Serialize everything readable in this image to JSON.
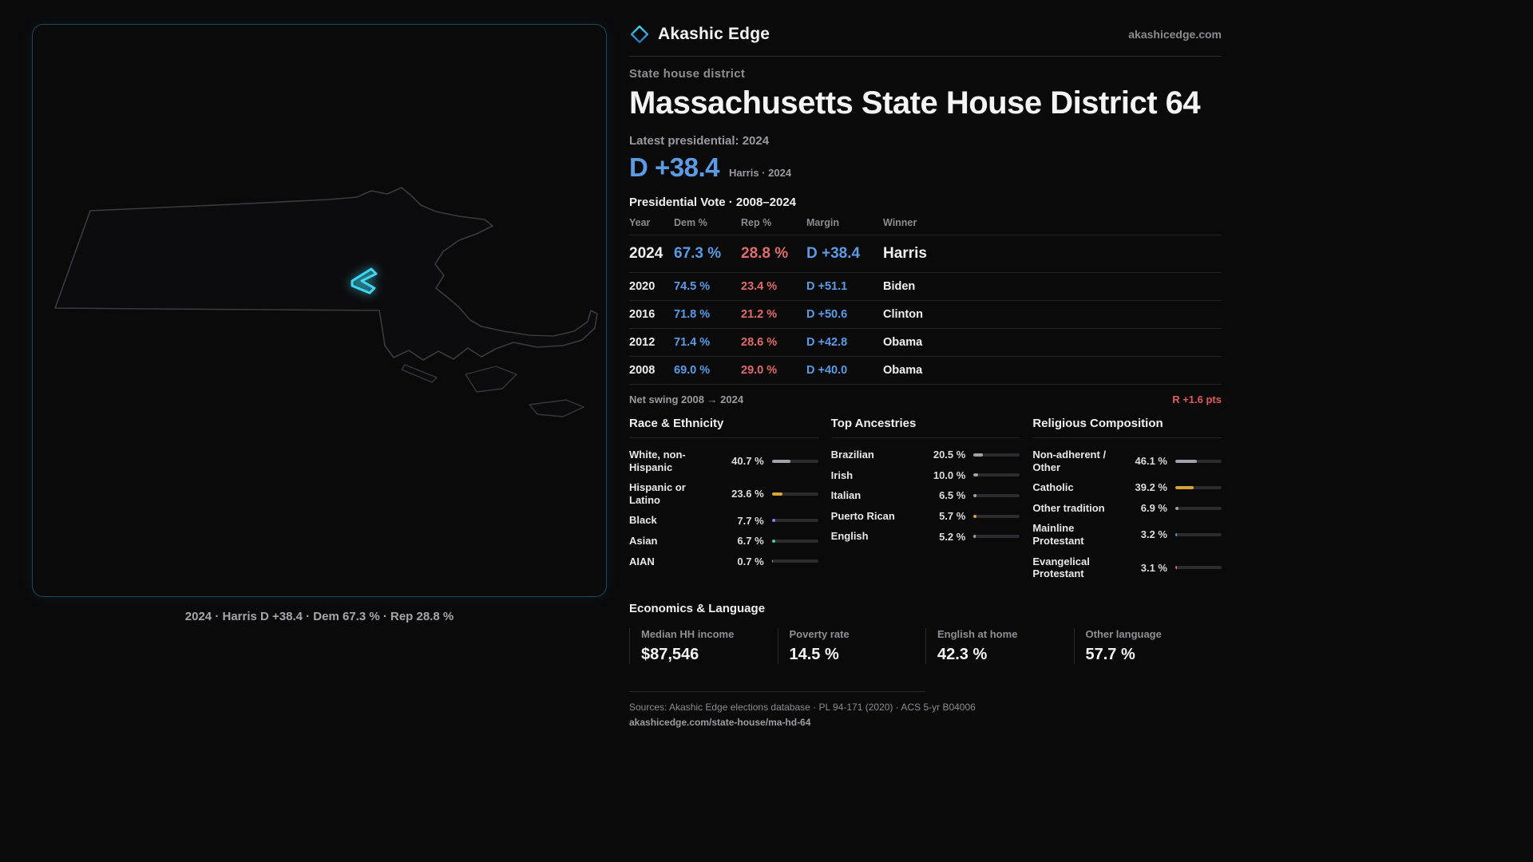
{
  "brand": {
    "name": "Akashic Edge",
    "domain": "akashicedge.com"
  },
  "page": {
    "kicker": "State house district",
    "title": "Massachusetts State House District 64"
  },
  "latest": {
    "label": "Latest presidential: 2024",
    "margin": "D +38.4",
    "detail": "Harris · 2024"
  },
  "vote_table": {
    "title": "Presidential Vote · 2008–2024",
    "columns": [
      "Year",
      "Dem %",
      "Rep %",
      "Margin",
      "Winner"
    ],
    "rows": [
      {
        "year": "2024",
        "dem": "67.3 %",
        "rep": "28.8 %",
        "margin": "D +38.4",
        "winner": "Harris"
      },
      {
        "year": "2020",
        "dem": "74.5 %",
        "rep": "23.4 %",
        "margin": "D +51.1",
        "winner": "Biden"
      },
      {
        "year": "2016",
        "dem": "71.8 %",
        "rep": "21.2 %",
        "margin": "D +50.6",
        "winner": "Clinton"
      },
      {
        "year": "2012",
        "dem": "71.4 %",
        "rep": "28.6 %",
        "margin": "D +42.8",
        "winner": "Obama"
      },
      {
        "year": "2008",
        "dem": "69.0 %",
        "rep": "29.0 %",
        "margin": "D +40.0",
        "winner": "Obama"
      }
    ]
  },
  "net_swing": {
    "label": "Net swing 2008 → 2024",
    "value": "R +1.6 pts"
  },
  "demographics": {
    "race": {
      "title": "Race & Ethnicity",
      "rows": [
        {
          "label": "White, non-Hispanic",
          "value": "40.7 %",
          "pct": 40.7,
          "color": "#a1a1aa"
        },
        {
          "label": "Hispanic or Latino",
          "value": "23.6 %",
          "pct": 23.6,
          "color": "#d9a437"
        },
        {
          "label": "Black",
          "value": "7.7 %",
          "pct": 7.7,
          "color": "#8b7cf6"
        },
        {
          "label": "Asian",
          "value": "6.7 %",
          "pct": 6.7,
          "color": "#34d399"
        },
        {
          "label": "AIAN",
          "value": "0.7 %",
          "pct": 0.7,
          "color": "#a1a1aa"
        }
      ]
    },
    "ancestries": {
      "title": "Top Ancestries",
      "rows": [
        {
          "label": "Brazilian",
          "value": "20.5 %",
          "pct": 20.5,
          "color": "#a1a1aa"
        },
        {
          "label": "Irish",
          "value": "10.0 %",
          "pct": 10.0,
          "color": "#a1a1aa"
        },
        {
          "label": "Italian",
          "value": "6.5 %",
          "pct": 6.5,
          "color": "#a1a1aa"
        },
        {
          "label": "Puerto Rican",
          "value": "5.7 %",
          "pct": 5.7,
          "color": "#d9a437"
        },
        {
          "label": "English",
          "value": "5.2 %",
          "pct": 5.2,
          "color": "#a1a1aa"
        }
      ]
    },
    "religion": {
      "title": "Religious Composition",
      "rows": [
        {
          "label": "Non-adherent / Other",
          "value": "46.1 %",
          "pct": 46.1,
          "color": "#a1a1aa"
        },
        {
          "label": "Catholic",
          "value": "39.2 %",
          "pct": 39.2,
          "color": "#d9a437"
        },
        {
          "label": "Other tradition",
          "value": "6.9 %",
          "pct": 6.9,
          "color": "#a1a1aa"
        },
        {
          "label": "Mainline Protestant",
          "value": "3.2 %",
          "pct": 3.2,
          "color": "#5b9ce4"
        },
        {
          "label": "Evangelical Protestant",
          "value": "3.1 %",
          "pct": 3.1,
          "color": "#e06c6c"
        }
      ]
    }
  },
  "economics": {
    "title": "Economics & Language",
    "stats": [
      {
        "label": "Median HH income",
        "value": "$87,546"
      },
      {
        "label": "Poverty rate",
        "value": "14.5 %"
      },
      {
        "label": "English at home",
        "value": "42.3 %"
      },
      {
        "label": "Other language",
        "value": "57.7 %"
      }
    ]
  },
  "footer": {
    "sources": "Sources: Akashic Edge elections database · PL 94-171 (2020) · ACS 5-yr B04006",
    "permalink": "akashicedge.com/state-house/ma-hd-64"
  },
  "map": {
    "caption": "2024 · Harris D +38.4 · Dem 67.3 % · Rep 28.8 %"
  },
  "colors": {
    "dem": "#5b9ce4",
    "rep": "#e06c6c",
    "accent": "#3fd8f0"
  }
}
